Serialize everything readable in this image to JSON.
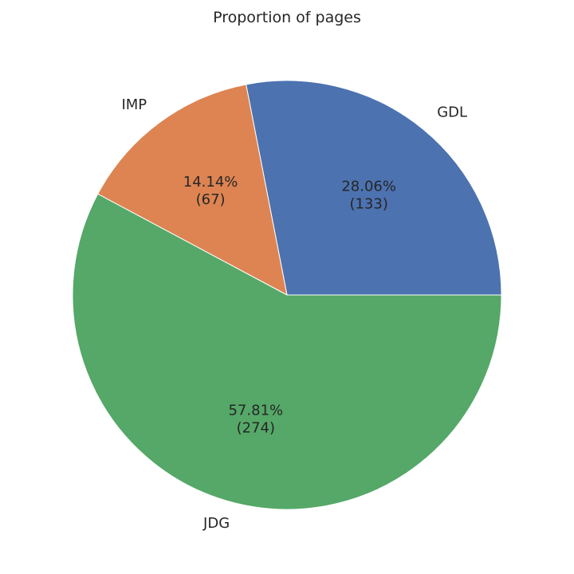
{
  "chart_data": {
    "type": "pie",
    "title": "Proportion of pages",
    "categories": [
      "GDL",
      "IMP",
      "JDG"
    ],
    "values": [
      133,
      67,
      274
    ],
    "percent_labels": [
      "28.06%",
      "14.14%",
      "57.81%"
    ],
    "count_labels": [
      "(133)",
      "(67)",
      "(274)"
    ],
    "colors": [
      "#4c72b0",
      "#dd8452",
      "#55a868"
    ],
    "start_angle_deg": 0,
    "direction": "counterclockwise",
    "legend": "none"
  }
}
